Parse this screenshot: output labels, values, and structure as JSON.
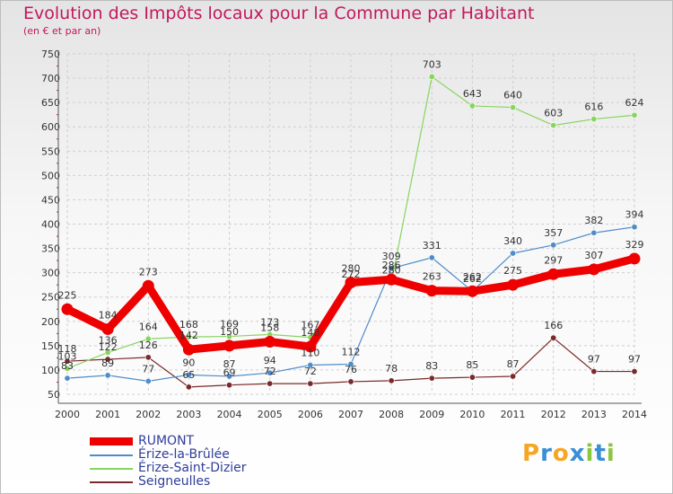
{
  "title": "Evolution des Impôts locaux pour la Commune par Habitant",
  "subtitle": "(en € et par an)",
  "logo": {
    "text": "Proxiti",
    "letters": [
      "P",
      "r",
      "o",
      "x",
      "i",
      "t",
      "i"
    ],
    "colors": [
      "#f5a623",
      "#3a8fd6",
      "#f5a623",
      "#3a8fd6",
      "#8cc63f",
      "#3a8fd6",
      "#8cc63f"
    ]
  },
  "chart_data": {
    "type": "line",
    "title": "Evolution des Impôts locaux pour la Commune par Habitant",
    "subtitle": "(en € et par an)",
    "xlabel": "",
    "ylabel": "",
    "ylim": [
      50,
      750
    ],
    "yticks": [
      50,
      100,
      150,
      200,
      250,
      300,
      350,
      400,
      450,
      500,
      550,
      600,
      650,
      700,
      750
    ],
    "grid": true,
    "legend_position": "bottom-left",
    "x": [
      2000,
      2001,
      2002,
      2003,
      2004,
      2005,
      2006,
      2007,
      2008,
      2009,
      2010,
      2011,
      2012,
      2013,
      2014
    ],
    "series": [
      {
        "name": "RUMONT",
        "color": "#ee0000",
        "values": [
          225,
          184,
          273,
          142,
          150,
          158,
          148,
          280,
          286,
          263,
          262,
          275,
          297,
          307,
          329
        ],
        "labels": [
          "225",
          "184",
          "273",
          "142",
          "150",
          "158",
          "148",
          "280",
          "286",
          "263",
          "262",
          "275",
          "297",
          "307",
          "329"
        ]
      },
      {
        "name": "Érize-la-Brûlée",
        "color": "#4f8dc9",
        "values": [
          83,
          89,
          77,
          90,
          87,
          94,
          110,
          112,
          309,
          331,
          262,
          340,
          357,
          382,
          394
        ],
        "labels": [
          "83",
          "89",
          "77",
          "90",
          "87",
          "94",
          "110",
          "112",
          "309",
          "331",
          "262",
          "340",
          "357",
          "382",
          "394"
        ]
      },
      {
        "name": "Érize-Saint-Dizier",
        "color": "#88d460",
        "values": [
          103,
          136,
          164,
          168,
          169,
          173,
          167,
          272,
          280,
          703,
          643,
          640,
          603,
          616,
          624
        ],
        "labels": [
          "103",
          "136",
          "164",
          "168",
          "169",
          "173",
          "167",
          "272",
          "280",
          "703",
          "643",
          "640",
          "603",
          "616",
          "624"
        ]
      },
      {
        "name": "Seigneulles",
        "color": "#7a2a2a",
        "values": [
          118,
          122,
          126,
          65,
          69,
          72,
          72,
          76,
          78,
          83,
          85,
          87,
          166,
          97,
          97
        ],
        "labels": [
          "118",
          "122",
          "126",
          "65",
          "69",
          "72",
          "72",
          "76",
          "78",
          "83",
          "85",
          "87",
          "166",
          "97",
          "97"
        ]
      }
    ]
  }
}
